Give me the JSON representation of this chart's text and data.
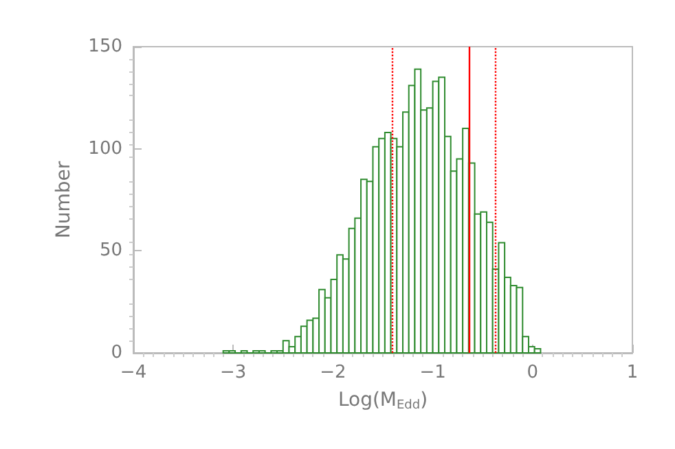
{
  "chart_data": {
    "type": "histogram",
    "xlabel": "Log(M$_{Edd}$)",
    "ylabel": "Number",
    "color": "#2e8b2e",
    "bins": [
      -3.1,
      -3.04,
      -2.98,
      -2.92,
      -2.86,
      -2.8,
      -2.74,
      -2.68,
      -2.62,
      -2.56,
      -2.5,
      -2.44,
      -2.38,
      -2.32,
      -2.26,
      -2.2,
      -2.14,
      -2.08,
      -2.02,
      -1.96,
      -1.9,
      -1.84,
      -1.78,
      -1.72,
      -1.66,
      -1.6,
      -1.54,
      -1.48,
      -1.42,
      -1.36,
      -1.3,
      -1.24,
      -1.18,
      -1.12,
      -1.06,
      -1,
      -0.94,
      -0.88,
      -0.82,
      -0.76,
      -0.7,
      -0.64,
      -0.58,
      -0.52,
      -0.46,
      -0.4,
      -0.34,
      -0.28,
      -0.22,
      -0.16,
      -0.1,
      -0.04,
      0.02,
      0.08
    ],
    "values": [
      1,
      1,
      0,
      1,
      0,
      1,
      1,
      0,
      1,
      1,
      6,
      3,
      8,
      13,
      16,
      17,
      31,
      27,
      36,
      48,
      46,
      61,
      66,
      85,
      84,
      101,
      105,
      108,
      105,
      101,
      118,
      131,
      139,
      119,
      120,
      133,
      135,
      106,
      89,
      95,
      110,
      93,
      68,
      69,
      64,
      41,
      54,
      37,
      33,
      32,
      8,
      3,
      2
    ],
    "xlim": [
      -4,
      1
    ],
    "xticks": [
      {
        "value": -4,
        "label": "−4"
      },
      {
        "value": -3,
        "label": "−3"
      },
      {
        "value": -2,
        "label": "−2"
      },
      {
        "value": -1,
        "label": "−1"
      },
      0,
      1
    ],
    "ylim": [
      0,
      150
    ],
    "yticks": [
      0,
      50,
      100,
      150
    ],
    "grid": false,
    "ref_lines": [
      {
        "axis": "x",
        "value": -0.63,
        "color": "#ff0000",
        "line_style": "solid"
      },
      {
        "axis": "x",
        "value": -1.41,
        "color": "#ff0000",
        "line_style": "dotted"
      },
      {
        "axis": "x",
        "value": -0.37,
        "color": "#ff0000",
        "line_style": "dotted"
      }
    ]
  }
}
